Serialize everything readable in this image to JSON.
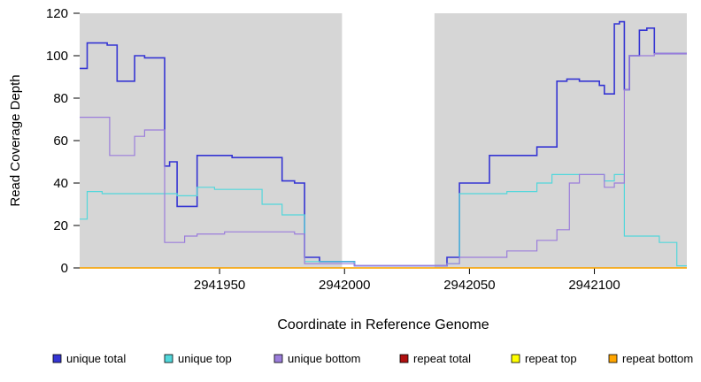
{
  "chart_data": {
    "type": "line",
    "subtype": "step",
    "title": "",
    "xlabel": "Coordinate in Reference Genome",
    "ylabel": "Read Coverage Depth",
    "xlim": [
      2941894,
      2942137
    ],
    "ylim": [
      0,
      120
    ],
    "x_ticks": [
      2941950,
      2942000,
      2942050,
      2942100
    ],
    "y_ticks": [
      0,
      20,
      40,
      60,
      80,
      100,
      120
    ],
    "grid": false,
    "legend_position": "bottom",
    "plot_bg_color": "#d6d6d6",
    "mask_region": {
      "x_start": 2941999,
      "x_end": 2942036,
      "color": "#ffffff"
    },
    "series": [
      {
        "name": "unique total",
        "color": "#3535d3",
        "line_width": 1.6,
        "points": [
          [
            2941894,
            94
          ],
          [
            2941897,
            106
          ],
          [
            2941905,
            105
          ],
          [
            2941909,
            88
          ],
          [
            2941916,
            100
          ],
          [
            2941920,
            99
          ],
          [
            2941928,
            48
          ],
          [
            2941930,
            50
          ],
          [
            2941933,
            29
          ],
          [
            2941941,
            53
          ],
          [
            2941955,
            52
          ],
          [
            2941975,
            41
          ],
          [
            2941980,
            40
          ],
          [
            2941984,
            5
          ],
          [
            2941990,
            3
          ],
          [
            2942004,
            1
          ],
          [
            2942041,
            5
          ],
          [
            2942046,
            40
          ],
          [
            2942058,
            53
          ],
          [
            2942077,
            57
          ],
          [
            2942085,
            88
          ],
          [
            2942089,
            89
          ],
          [
            2942094,
            88
          ],
          [
            2942102,
            86
          ],
          [
            2942104,
            82
          ],
          [
            2942108,
            115
          ],
          [
            2942110,
            116
          ],
          [
            2942112,
            84
          ],
          [
            2942114,
            100
          ],
          [
            2942118,
            112
          ],
          [
            2942121,
            113
          ],
          [
            2942124,
            101
          ]
        ]
      },
      {
        "name": "unique top",
        "color": "#52d7db",
        "line_width": 1.2,
        "points": [
          [
            2941894,
            23
          ],
          [
            2941897,
            36
          ],
          [
            2941903,
            35
          ],
          [
            2941933,
            34
          ],
          [
            2941941,
            38
          ],
          [
            2941948,
            37
          ],
          [
            2941967,
            30
          ],
          [
            2941975,
            25
          ],
          [
            2941984,
            3
          ],
          [
            2942004,
            1
          ],
          [
            2942041,
            2
          ],
          [
            2942046,
            35
          ],
          [
            2942065,
            36
          ],
          [
            2942077,
            40
          ],
          [
            2942083,
            44
          ],
          [
            2942102,
            44
          ],
          [
            2942104,
            41
          ],
          [
            2942108,
            44
          ],
          [
            2942112,
            15
          ],
          [
            2942126,
            12
          ],
          [
            2942133,
            1
          ]
        ]
      },
      {
        "name": "unique bottom",
        "color": "#9b7ddb",
        "line_width": 1.2,
        "points": [
          [
            2941894,
            71
          ],
          [
            2941906,
            53
          ],
          [
            2941916,
            62
          ],
          [
            2941920,
            65
          ],
          [
            2941928,
            12
          ],
          [
            2941936,
            15
          ],
          [
            2941941,
            16
          ],
          [
            2941952,
            17
          ],
          [
            2941980,
            16
          ],
          [
            2941984,
            2
          ],
          [
            2942004,
            1
          ],
          [
            2942041,
            2
          ],
          [
            2942046,
            5
          ],
          [
            2942065,
            8
          ],
          [
            2942077,
            13
          ],
          [
            2942085,
            18
          ],
          [
            2942090,
            40
          ],
          [
            2942094,
            44
          ],
          [
            2942102,
            44
          ],
          [
            2942104,
            38
          ],
          [
            2942108,
            40
          ],
          [
            2942112,
            84
          ],
          [
            2942114,
            100
          ],
          [
            2942124,
            101
          ]
        ]
      },
      {
        "name": "repeat total",
        "color": "#b01010",
        "line_width": 1.2,
        "points": [
          [
            2941894,
            0
          ]
        ]
      },
      {
        "name": "repeat top",
        "color": "#ffff00",
        "line_width": 1.2,
        "points": [
          [
            2941894,
            0
          ]
        ]
      },
      {
        "name": "repeat bottom",
        "color": "#ffa500",
        "line_width": 1.3,
        "points": [
          [
            2941894,
            0
          ]
        ]
      }
    ]
  }
}
